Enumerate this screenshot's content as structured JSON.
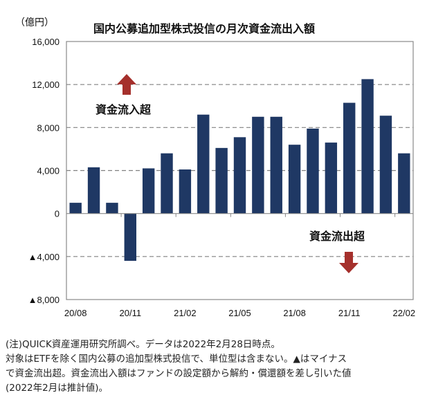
{
  "title": "国内公募追加型株式投信の月次資金流出入額",
  "unit_label": "（億円）",
  "annotations": {
    "inflow": "資金流入超",
    "outflow": "資金流出超"
  },
  "colors": {
    "bar": "#1f3864",
    "arrow": "#a5302c",
    "grid": "#808080"
  },
  "footnotes": [
    "(注)QUICK資産運用研究所調べ。データは2022年2月28日時点。",
    "対象はETFを除く国内公募の追加型株式投信で、単位型は含まない。▲はマイナス",
    "で資金流出超。資金流出入額はファンドの設定額から解約・償還額を差し引いた値",
    "(2022年2月は推計値)。"
  ],
  "chart_data": {
    "type": "bar",
    "title": "国内公募追加型株式投信の月次資金流出入額",
    "ylabel": "（億円）",
    "ylim": [
      -8000,
      16000
    ],
    "grid": "dashed horizontal",
    "yticks": [
      16000,
      12000,
      8000,
      4000,
      0,
      -4000,
      -8000
    ],
    "ytick_labels": [
      "16,000",
      "12,000",
      "8,000",
      "4,000",
      "0",
      "▲4,000",
      "▲8,000"
    ],
    "categories": [
      "20/08",
      "20/09",
      "20/10",
      "20/11",
      "20/12",
      "21/01",
      "21/02",
      "21/03",
      "21/04",
      "21/05",
      "21/06",
      "21/07",
      "21/08",
      "21/09",
      "21/10",
      "21/11",
      "21/12",
      "22/01",
      "22/02"
    ],
    "xtick_labels": [
      "20/08",
      "20/11",
      "21/02",
      "21/05",
      "21/08",
      "21/11",
      "22/02"
    ],
    "values": [
      1000,
      4300,
      1000,
      -4400,
      4200,
      5600,
      4100,
      9200,
      6100,
      7100,
      9000,
      9000,
      6400,
      7900,
      6600,
      10300,
      12500,
      9100,
      5600
    ]
  }
}
